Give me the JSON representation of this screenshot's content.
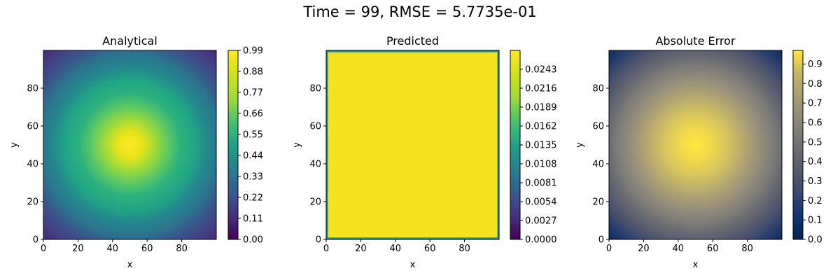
{
  "figure": {
    "suptitle": "Time = 99, RMSE = 5.7735e-01"
  },
  "chart_data": [
    {
      "type": "heatmap",
      "title": "Analytical",
      "xlabel": "x",
      "ylabel": "y",
      "xlim": [
        0,
        99
      ],
      "ylim": [
        0,
        99
      ],
      "x_ticks": [
        "0",
        "20",
        "40",
        "60",
        "80"
      ],
      "y_ticks": [
        "0",
        "20",
        "40",
        "60",
        "80"
      ],
      "colormap": "viridis",
      "field": "gaussian centered at (49.5, 49.5), peak 1.0, falling to ~0.1 at corners",
      "colorbar": {
        "range": [
          0.0,
          0.99
        ],
        "ticks": [
          "0.00",
          "0.11",
          "0.22",
          "0.33",
          "0.44",
          "0.55",
          "0.66",
          "0.77",
          "0.88",
          "0.99"
        ]
      }
    },
    {
      "type": "heatmap",
      "title": "Predicted",
      "xlabel": "x",
      "ylabel": "y",
      "xlim": [
        0,
        99
      ],
      "ylim": [
        0,
        99
      ],
      "x_ticks": [
        "0",
        "20",
        "40",
        "60",
        "80"
      ],
      "y_ticks": [
        "0",
        "20",
        "40",
        "60",
        "80"
      ],
      "colormap": "viridis",
      "field": "uniform ~0.027 interior, ~0.0135 on boundary rows/columns",
      "colorbar": {
        "range": [
          0.0,
          0.027
        ],
        "ticks": [
          "0.0000",
          "0.0027",
          "0.0054",
          "0.0081",
          "0.0108",
          "0.0135",
          "0.0162",
          "0.0189",
          "0.0216",
          "0.0243"
        ]
      }
    },
    {
      "type": "heatmap",
      "title": "Absolute Error",
      "xlabel": "x",
      "ylabel": "y",
      "xlim": [
        0,
        99
      ],
      "ylim": [
        0,
        99
      ],
      "x_ticks": [
        "0",
        "20",
        "40",
        "60",
        "80"
      ],
      "y_ticks": [
        "0",
        "20",
        "40",
        "60",
        "80"
      ],
      "colormap": "cividis",
      "field": "gaussian centered at (49.5, 49.5), peak ~0.97, near 0.05 at corners",
      "colorbar": {
        "range": [
          0.0,
          0.97
        ],
        "ticks": [
          "0.0",
          "0.1",
          "0.2",
          "0.3",
          "0.4",
          "0.5",
          "0.6",
          "0.7",
          "0.8",
          "0.9"
        ]
      }
    }
  ]
}
